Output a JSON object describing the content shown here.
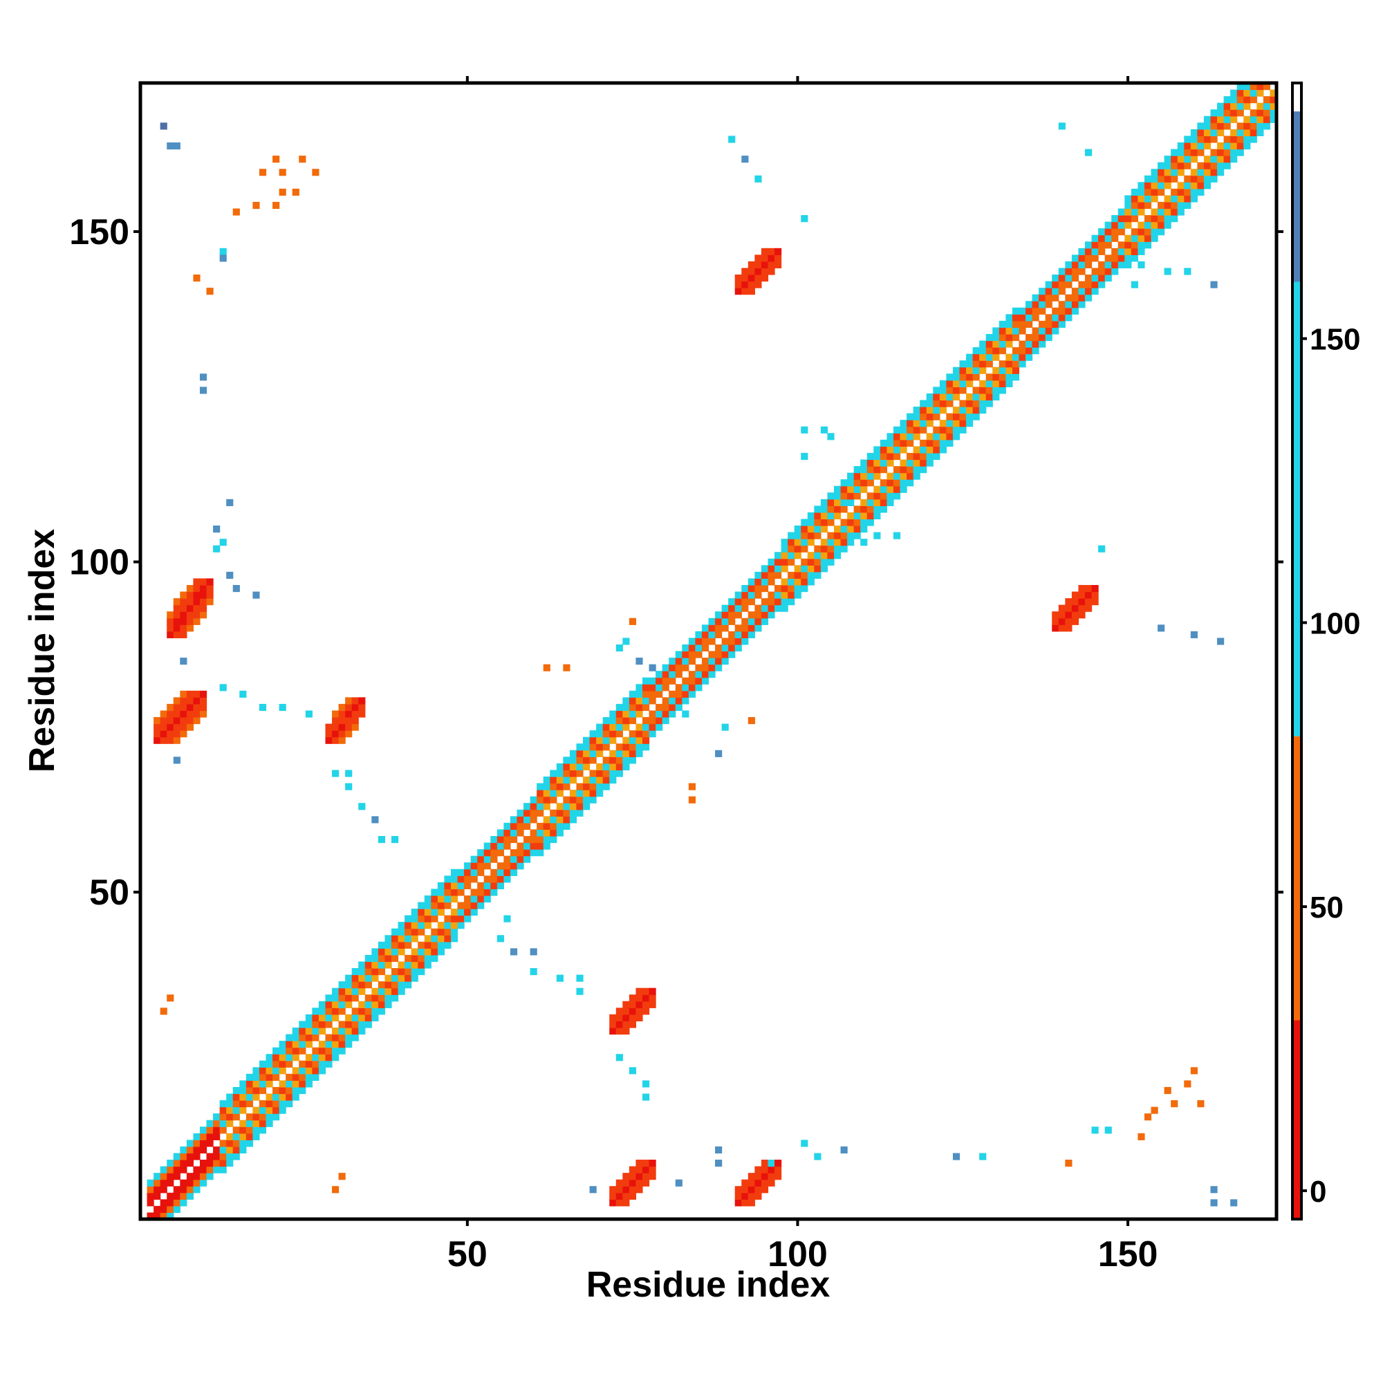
{
  "chart_data": {
    "type": "heatmap",
    "title": "",
    "xlabel": "Residue index",
    "ylabel": "Residue index",
    "xlim": [
      1,
      172
    ],
    "ylim": [
      1,
      172
    ],
    "x_ticks": [
      50,
      100,
      150
    ],
    "y_ticks": [
      50,
      100,
      150
    ],
    "grid": false,
    "diagonal_band": {
      "comment_free": true,
      "start": 2,
      "end": 172,
      "segments": [
        [
          2,
          12,
          "helix"
        ],
        [
          13,
          31,
          "strand"
        ],
        [
          32,
          48,
          "strand"
        ],
        [
          49,
          60,
          "mixed"
        ],
        [
          61,
          77,
          "strand"
        ],
        [
          78,
          97,
          "mixed"
        ],
        [
          98,
          112,
          "strand"
        ],
        [
          113,
          133,
          "strand"
        ],
        [
          134,
          149,
          "mixed"
        ],
        [
          150,
          172,
          "strand"
        ]
      ]
    },
    "contact_patches": [
      {
        "x": [
          3,
          10
        ],
        "y": [
          73,
          80
        ],
        "value": 10
      },
      {
        "x": [
          5,
          11
        ],
        "y": [
          89,
          97
        ],
        "value": 10
      },
      {
        "x": [
          29,
          34
        ],
        "y": [
          73,
          79
        ],
        "value": 10
      },
      {
        "x": [
          72,
          78
        ],
        "y": [
          3,
          9
        ],
        "value": 10
      },
      {
        "x": [
          72,
          78
        ],
        "y": [
          29,
          35
        ],
        "value": 10
      },
      {
        "x": [
          91,
          97
        ],
        "y": [
          3,
          9
        ],
        "value": 10
      },
      {
        "x": [
          91,
          97
        ],
        "y": [
          141,
          147
        ],
        "value": 10
      },
      {
        "x": [
          139,
          145
        ],
        "y": [
          90,
          96
        ],
        "value": 10
      }
    ],
    "sparse_contacts": [
      [
        4,
        166,
        160
      ],
      [
        5,
        163,
        150
      ],
      [
        6,
        163,
        150
      ],
      [
        13,
        147,
        110
      ],
      [
        13,
        146,
        140
      ],
      [
        11,
        141,
        60
      ],
      [
        10,
        128,
        140
      ],
      [
        10,
        126,
        140
      ],
      [
        14,
        109,
        150
      ],
      [
        12,
        105,
        150
      ],
      [
        13,
        103,
        110
      ],
      [
        12,
        102,
        130
      ],
      [
        14,
        98,
        140
      ],
      [
        15,
        96,
        140
      ],
      [
        18,
        95,
        150
      ],
      [
        7,
        85,
        150
      ],
      [
        6,
        70,
        150
      ],
      [
        13,
        81,
        110
      ],
      [
        16,
        80,
        110
      ],
      [
        19,
        78,
        110
      ],
      [
        22,
        78,
        110
      ],
      [
        26,
        77,
        110
      ],
      [
        30,
        68,
        110
      ],
      [
        32,
        68,
        110
      ],
      [
        32,
        66,
        110
      ],
      [
        34,
        63,
        110
      ],
      [
        36,
        61,
        140
      ],
      [
        37,
        58,
        110
      ],
      [
        39,
        58,
        110
      ],
      [
        55,
        43,
        110
      ],
      [
        57,
        41,
        140
      ],
      [
        60,
        41,
        140
      ],
      [
        60,
        38,
        110
      ],
      [
        64,
        37,
        110
      ],
      [
        67,
        37,
        110
      ],
      [
        67,
        35,
        110
      ],
      [
        56,
        46,
        110
      ],
      [
        73,
        25,
        110
      ],
      [
        75,
        23,
        110
      ],
      [
        77,
        21,
        110
      ],
      [
        77,
        19,
        110
      ],
      [
        69,
        5,
        150
      ],
      [
        82,
        6,
        140
      ],
      [
        88,
        11,
        140
      ],
      [
        88,
        9,
        140
      ],
      [
        96,
        9,
        110
      ],
      [
        101,
        12,
        110
      ],
      [
        103,
        10,
        110
      ],
      [
        107,
        11,
        150
      ],
      [
        124,
        10,
        140
      ],
      [
        128,
        10,
        110
      ],
      [
        145,
        14,
        110
      ],
      [
        147,
        14,
        110
      ],
      [
        141,
        9,
        60
      ],
      [
        163,
        5,
        150
      ],
      [
        163,
        3,
        150
      ],
      [
        166,
        3,
        150
      ],
      [
        156,
        20,
        40
      ],
      [
        159,
        21,
        60
      ],
      [
        160,
        23,
        60
      ],
      [
        154,
        17,
        60
      ],
      [
        157,
        18,
        60
      ],
      [
        161,
        18,
        60
      ],
      [
        153,
        16,
        60
      ],
      [
        152,
        13,
        60
      ],
      [
        4,
        32,
        60
      ],
      [
        5,
        34,
        60
      ],
      [
        30,
        5,
        60
      ],
      [
        31,
        7,
        60
      ],
      [
        19,
        159,
        60
      ],
      [
        21,
        161,
        60
      ],
      [
        22,
        159,
        60
      ],
      [
        25,
        161,
        60
      ],
      [
        27,
        159,
        60
      ],
      [
        22,
        156,
        60
      ],
      [
        24,
        156,
        40
      ],
      [
        18,
        154,
        60
      ],
      [
        21,
        154,
        40
      ],
      [
        15,
        153,
        60
      ],
      [
        9,
        143,
        60
      ],
      [
        90,
        164,
        110
      ],
      [
        92,
        161,
        140
      ],
      [
        94,
        158,
        110
      ],
      [
        101,
        152,
        110
      ],
      [
        140,
        166,
        110
      ],
      [
        144,
        162,
        110
      ],
      [
        152,
        145,
        110
      ],
      [
        156,
        144,
        110
      ],
      [
        159,
        144,
        110
      ],
      [
        163,
        142,
        140
      ],
      [
        151,
        142,
        110
      ],
      [
        146,
        102,
        110
      ],
      [
        155,
        90,
        140
      ],
      [
        160,
        89,
        140
      ],
      [
        164,
        88,
        140
      ],
      [
        78,
        84,
        140
      ],
      [
        74,
        88,
        110
      ],
      [
        73,
        87,
        110
      ],
      [
        62,
        84,
        60
      ],
      [
        65,
        84,
        60
      ],
      [
        75,
        91,
        60
      ],
      [
        83,
        77,
        110
      ],
      [
        89,
        75,
        110
      ],
      [
        93,
        76,
        40
      ],
      [
        88,
        71,
        140
      ],
      [
        84,
        66,
        40
      ],
      [
        84,
        64,
        60
      ],
      [
        76,
        85,
        140
      ],
      [
        101,
        120,
        110
      ],
      [
        104,
        120,
        110
      ],
      [
        105,
        119,
        110
      ],
      [
        101,
        116,
        110
      ],
      [
        108,
        109,
        110
      ],
      [
        112,
        104,
        110
      ],
      [
        115,
        104,
        110
      ],
      [
        110,
        103,
        110
      ]
    ],
    "colorbar": {
      "ticks": [
        0,
        50,
        100,
        150
      ],
      "range": [
        -5,
        195
      ],
      "bands": [
        {
          "from": -5,
          "to": 30,
          "color": "#e8120c"
        },
        {
          "from": 30,
          "to": 80,
          "color": "#f26a0a"
        },
        {
          "from": 80,
          "to": 160,
          "color": "#22d4e8"
        },
        {
          "from": 160,
          "to": 190,
          "color": "#4f7fb6"
        },
        {
          "from": 190,
          "to": 195,
          "color": "#ffffff"
        }
      ]
    }
  },
  "palette": {
    "strong": "#e8120c",
    "medium_red": "#f23c0e",
    "orange": "#f26a0a",
    "amber": "#f5a30d",
    "cyan": "#22d4e8",
    "steel": "#4f8fc1",
    "slate": "#4f6fa6"
  }
}
